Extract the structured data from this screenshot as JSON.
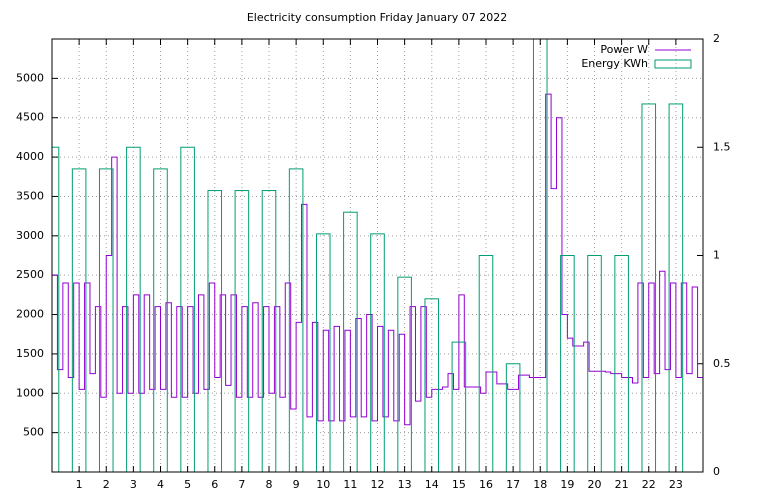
{
  "chart_data": {
    "type": "line",
    "title": "Electricity consumption Friday January 07 2022",
    "xlim": [
      0,
      24
    ],
    "xticks": [
      1,
      2,
      3,
      4,
      5,
      6,
      7,
      8,
      9,
      10,
      11,
      12,
      13,
      14,
      15,
      16,
      17,
      18,
      19,
      20,
      21,
      22,
      23
    ],
    "ylim": [
      0,
      5500
    ],
    "yticks": [
      500,
      1000,
      1500,
      2000,
      2500,
      3000,
      3500,
      4000,
      4500,
      5000
    ],
    "y2lim": [
      0,
      2
    ],
    "y2ticks": [
      0,
      0.5,
      1,
      1.5,
      2
    ],
    "grid": true,
    "legend": "top-right",
    "series": [
      {
        "name": "Power W",
        "color": "#9400d3",
        "style": "steps",
        "x": [
          0,
          0.2,
          0.4,
          0.6,
          0.8,
          1,
          1.2,
          1.4,
          1.6,
          1.8,
          2,
          2.2,
          2.4,
          2.6,
          2.8,
          3,
          3.2,
          3.4,
          3.6,
          3.8,
          4,
          4.2,
          4.4,
          4.6,
          4.8,
          5,
          5.2,
          5.4,
          5.6,
          5.8,
          6,
          6.2,
          6.4,
          6.6,
          6.8,
          7,
          7.2,
          7.4,
          7.6,
          7.8,
          8,
          8.2,
          8.4,
          8.6,
          8.8,
          9,
          9.2,
          9.4,
          9.6,
          9.8,
          10,
          10.2,
          10.4,
          10.6,
          10.8,
          11,
          11.2,
          11.4,
          11.6,
          11.8,
          12,
          12.2,
          12.4,
          12.6,
          12.8,
          13,
          13.2,
          13.4,
          13.6,
          13.8,
          14,
          14.2,
          14.4,
          14.6,
          14.8,
          15,
          15.2,
          15.4,
          15.6,
          15.8,
          16,
          16.2,
          16.4,
          16.6,
          16.8,
          17,
          17.2,
          17.4,
          17.6,
          17.8,
          18,
          18.2,
          18.4,
          18.6,
          18.8,
          19,
          19.2,
          19.4,
          19.6,
          19.8,
          20,
          20.2,
          20.4,
          20.6,
          20.8,
          21,
          21.2,
          21.4,
          21.6,
          21.8,
          22,
          22.2,
          22.4,
          22.6,
          22.8,
          23,
          23.2,
          23.4,
          23.6,
          23.8
        ],
        "values": [
          2500,
          1300,
          2400,
          1200,
          2400,
          1050,
          2400,
          1250,
          2100,
          950,
          2750,
          4000,
          1000,
          2100,
          1000,
          2250,
          1000,
          2250,
          1050,
          2100,
          1050,
          2150,
          950,
          2100,
          950,
          2100,
          1000,
          2250,
          1050,
          2400,
          1200,
          2250,
          1100,
          2250,
          950,
          2100,
          950,
          2150,
          950,
          2100,
          1000,
          2100,
          950,
          2400,
          800,
          1900,
          3400,
          700,
          1900,
          650,
          1800,
          650,
          1850,
          650,
          1800,
          700,
          1950,
          700,
          2000,
          650,
          1850,
          700,
          1800,
          650,
          1750,
          600,
          2100,
          900,
          2100,
          950,
          1050,
          1050,
          1080,
          1250,
          1050,
          2250,
          1080,
          1080,
          1080,
          1000,
          1270,
          1270,
          1120,
          1120,
          1050,
          1050,
          1230,
          1230,
          1200,
          1200,
          1200,
          4800,
          3600,
          4500,
          2000,
          1700,
          1600,
          1600,
          1650,
          1280,
          1280,
          1280,
          1270,
          1250,
          1250,
          1200,
          1200,
          1130,
          2400,
          1200,
          2400,
          1250,
          2550,
          1300,
          2400,
          1200,
          2400,
          1250,
          2350,
          1200
        ]
      },
      {
        "name": "Energy KWh",
        "color": "#009e73",
        "style": "boxes",
        "axis": "y2",
        "box_width": 0.5,
        "x": [
          0,
          1,
          2,
          3,
          4,
          5,
          6,
          7,
          8,
          9,
          10,
          11,
          12,
          13,
          14,
          15,
          16,
          17,
          18,
          19,
          20,
          21,
          22,
          23
        ],
        "values": [
          1.5,
          1.4,
          1.4,
          1.5,
          1.4,
          1.5,
          1.3,
          1.3,
          1.3,
          1.4,
          1.1,
          1.2,
          1.1,
          0.9,
          0.8,
          0.6,
          1.0,
          0.5,
          2,
          1.0,
          1.0,
          1.0,
          1.7,
          1.7
        ]
      }
    ]
  }
}
